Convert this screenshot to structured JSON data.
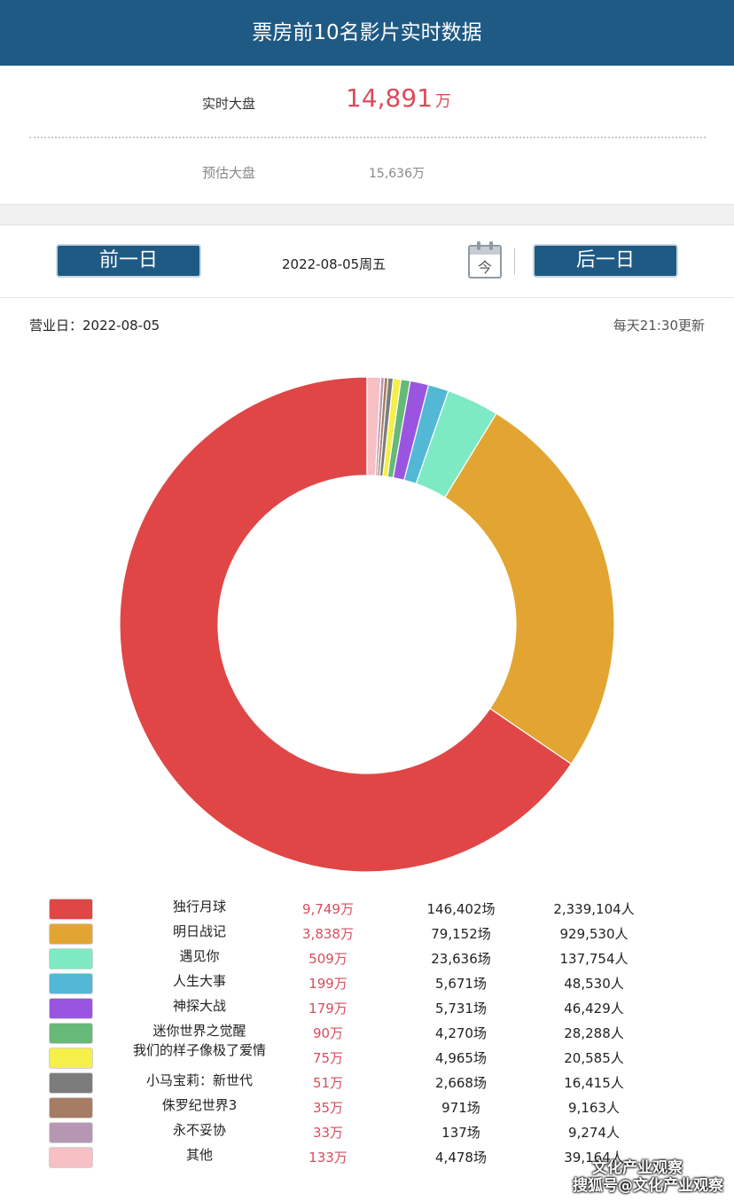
{
  "header": {
    "title": "票房前10名影片实时数据"
  },
  "summary": {
    "realtime_label": "实时大盘",
    "realtime_value": "14,891",
    "realtime_unit": "万",
    "estimate_label": "预估大盘",
    "estimate_value": "15,636万"
  },
  "nav": {
    "prev_label": "前一日",
    "next_label": "后一日",
    "date": "2022-08-05周五",
    "calendar_text": "今"
  },
  "info": {
    "business_day": "营业日：2022-08-05",
    "update_note": "每天21:30更新"
  },
  "chart_data": {
    "type": "pie",
    "donut": true,
    "unit": "万",
    "categories": [
      "独行月球",
      "明日战记",
      "遇见你",
      "人生大事",
      "神探大战",
      "迷你世界之觉醒",
      "我们的样子像极了爱情",
      "小马宝莉：新世代",
      "侏罗纪世界3",
      "永不妥协",
      "其他"
    ],
    "values": [
      9749,
      3838,
      509,
      199,
      179,
      90,
      75,
      51,
      35,
      33,
      133
    ],
    "colors": [
      "#e04646",
      "#e3a532",
      "#7eeac4",
      "#52b8d6",
      "#9a55e0",
      "#66b978",
      "#f4ef4a",
      "#7c7c7c",
      "#a67c64",
      "#b597b3",
      "#f6c0c4"
    ]
  },
  "legend": [
    {
      "name": "独行月球",
      "box": "9,749万",
      "shows": "146,402场",
      "audience": "2,339,104人"
    },
    {
      "name": "明日战记",
      "box": "3,838万",
      "shows": "79,152场",
      "audience": "929,530人"
    },
    {
      "name": "遇见你",
      "box": "509万",
      "shows": "23,636场",
      "audience": "137,754人"
    },
    {
      "name": "人生大事",
      "box": "199万",
      "shows": "5,671场",
      "audience": "48,530人"
    },
    {
      "name": "神探大战",
      "box": "179万",
      "shows": "5,731场",
      "audience": "46,429人"
    },
    {
      "name": "迷你世界之觉醒",
      "box": "90万",
      "shows": "4,270场",
      "audience": "28,288人"
    },
    {
      "name": "我们的样子像极了爱情",
      "box": "75万",
      "shows": "4,965场",
      "audience": "20,585人"
    },
    {
      "name": "小马宝莉：新世代",
      "box": "51万",
      "shows": "2,668场",
      "audience": "16,415人"
    },
    {
      "name": "侏罗纪世界3",
      "box": "35万",
      "shows": "971场",
      "audience": "9,163人"
    },
    {
      "name": "永不妥协",
      "box": "33万",
      "shows": "137场",
      "audience": "9,274人"
    },
    {
      "name": "其他",
      "box": "133万",
      "shows": "4,478场",
      "audience": "39,164人"
    }
  ],
  "watermark": {
    "line1": "文化产业观察",
    "line2": "搜狐号@文化产业观察"
  }
}
